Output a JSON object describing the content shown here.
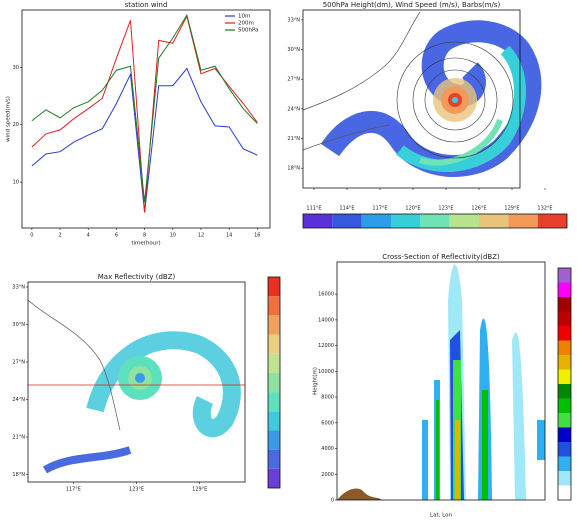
{
  "chart_data": [
    {
      "type": "line",
      "title": "station wind",
      "x_label": "time(hour)",
      "y_label": "wind speed(m/s)",
      "x": [
        0,
        1,
        2,
        3,
        4,
        5,
        6,
        7,
        8,
        9,
        10,
        11,
        12,
        13,
        14,
        15,
        16
      ],
      "series": [
        {
          "name": "10m",
          "color": "#2a3bd6",
          "values": [
            12.8,
            14.9,
            15.3,
            17,
            18.2,
            19.3,
            23.7,
            28.8,
            4.7,
            26.8,
            26.8,
            29.8,
            24,
            19.8,
            19.6,
            15.8,
            14.7
          ]
        },
        {
          "name": "200m",
          "color": "#e02020",
          "values": [
            16.1,
            18.4,
            19.1,
            21.1,
            22.8,
            24.6,
            31.6,
            38.2,
            4.7,
            34.7,
            34.2,
            38.9,
            28.9,
            29.8,
            26.7,
            23.7,
            20.4
          ]
        },
        {
          "name": "500hPa",
          "color": "#1f7a1f",
          "values": [
            20.7,
            22.6,
            21.2,
            23,
            24,
            26,
            29.5,
            30.2,
            6.5,
            31.6,
            35.1,
            39.1,
            29.5,
            30.2,
            26.3,
            22.8,
            20.2
          ]
        }
      ],
      "xlim": [
        -0.7,
        16.9
      ],
      "xticks": [
        0,
        2,
        4,
        6,
        8,
        10,
        12,
        14,
        16
      ],
      "ylim": [
        2,
        40
      ],
      "yticks": [
        10,
        20,
        30
      ],
      "legend": "upper right"
    },
    {
      "type": "map",
      "title": "500hPa Height(dm), Wind Speed (m/s), Barbs(m/s)",
      "xlim": [
        110,
        134
      ],
      "xticks": [
        {
          "value": 111,
          "label": "111°E"
        },
        {
          "value": 114,
          "label": "114°E"
        },
        {
          "value": 117,
          "label": "117°E"
        },
        {
          "value": 120,
          "label": "120°E"
        },
        {
          "value": 123,
          "label": "123°E"
        },
        {
          "value": 126,
          "label": "126°E"
        },
        {
          "value": 129,
          "label": "129°E"
        },
        {
          "value": 132,
          "label": "132°E"
        }
      ],
      "ylim": [
        16,
        34
      ],
      "yticks": [
        {
          "value": 18,
          "label": "18°N"
        },
        {
          "value": 21,
          "label": "21°N"
        },
        {
          "value": 24,
          "label": "24°N"
        },
        {
          "value": 27,
          "label": "27°N"
        },
        {
          "value": 30,
          "label": "30°N"
        },
        {
          "value": 33,
          "label": "33°N"
        }
      ],
      "colorbar": [
        "#5b2fd9",
        "#3657e0",
        "#2a9ee8",
        "#37d0da",
        "#6fe3b5",
        "#b7e38e",
        "#e8c47a",
        "#f39a5a",
        "#e8402a"
      ]
    },
    {
      "type": "map",
      "title": "Max Reflectivity (dBZ)",
      "xlim": [
        112.7,
        133.3
      ],
      "xticks": [
        {
          "value": 117,
          "label": "117°E"
        },
        {
          "value": 123,
          "label": "123°E"
        },
        {
          "value": 129,
          "label": "129°E"
        }
      ],
      "ylim": [
        17.4,
        33.4
      ],
      "yticks": [
        {
          "value": 18,
          "label": "18°N"
        },
        {
          "value": 21,
          "label": "21°N"
        },
        {
          "value": 24,
          "label": "24°N"
        },
        {
          "value": 27,
          "label": "27°N"
        },
        {
          "value": 30,
          "label": "30°N"
        },
        {
          "value": 33,
          "label": "33°N"
        }
      ],
      "colorbar": [
        "#6a3fd8",
        "#4a6ae0",
        "#3a9ae5",
        "#40c8dc",
        "#5de0bd",
        "#8fe3a0",
        "#c0e390",
        "#e8d080",
        "#f0a060",
        "#f07040",
        "#e83020"
      ]
    },
    {
      "type": "section",
      "title": "Cross-Section of Reflectivity(dBZ)",
      "x_label": "Lat, Lon",
      "y_label": "Height(m)",
      "ylim": [
        0,
        18500
      ],
      "yticks": [
        0,
        2000,
        4000,
        6000,
        8000,
        10000,
        12000,
        14000,
        16000
      ],
      "colorbar": [
        "#ffffff",
        "#a0e8f8",
        "#30b0f0",
        "#2050e0",
        "#0000c8",
        "#40e040",
        "#00c000",
        "#008800",
        "#f0f000",
        "#e8b000",
        "#f08000",
        "#f00000",
        "#c00000",
        "#a00000",
        "#ff00ff",
        "#a060d0"
      ]
    }
  ]
}
